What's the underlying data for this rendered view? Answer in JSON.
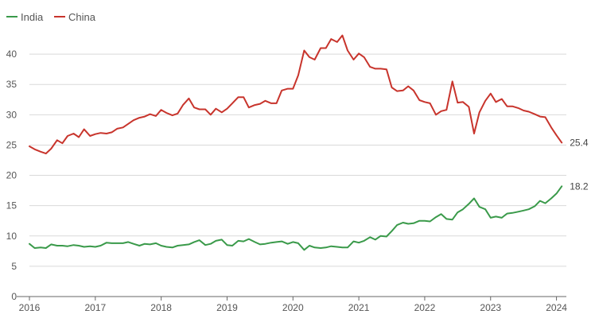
{
  "chart_data": {
    "type": "line",
    "title": "",
    "xlabel": "",
    "ylabel": "",
    "xlim": [
      2016,
      2024.15
    ],
    "ylim": [
      0,
      45
    ],
    "grid": true,
    "legend_position": "top-left",
    "x_ticks": [
      "2016",
      "2017",
      "2018",
      "2019",
      "2020",
      "2021",
      "2022",
      "2023",
      "2024"
    ],
    "y_ticks": [
      "0",
      "5",
      "10",
      "15",
      "20",
      "25",
      "30",
      "35",
      "40"
    ],
    "colors": {
      "India": "#3a9a4a",
      "China": "#c8342c",
      "grid": "#d9d9d9",
      "axis": "#666666"
    },
    "series": [
      {
        "name": "China",
        "end_label": "25.4",
        "x": [
          2016.0,
          2016.08,
          2016.17,
          2016.25,
          2016.33,
          2016.42,
          2016.5,
          2016.58,
          2016.67,
          2016.75,
          2016.83,
          2016.92,
          2017.0,
          2017.08,
          2017.17,
          2017.25,
          2017.33,
          2017.42,
          2017.5,
          2017.58,
          2017.67,
          2017.75,
          2017.83,
          2017.92,
          2018.0,
          2018.08,
          2018.17,
          2018.25,
          2018.33,
          2018.42,
          2018.5,
          2018.58,
          2018.67,
          2018.75,
          2018.83,
          2018.92,
          2019.0,
          2019.08,
          2019.17,
          2019.25,
          2019.33,
          2019.42,
          2019.5,
          2019.58,
          2019.67,
          2019.75,
          2019.83,
          2019.92,
          2020.0,
          2020.08,
          2020.17,
          2020.25,
          2020.33,
          2020.42,
          2020.5,
          2020.58,
          2020.67,
          2020.75,
          2020.83,
          2020.92,
          2021.0,
          2021.08,
          2021.17,
          2021.25,
          2021.33,
          2021.42,
          2021.5,
          2021.58,
          2021.67,
          2021.75,
          2021.83,
          2021.92,
          2022.0,
          2022.08,
          2022.17,
          2022.25,
          2022.33,
          2022.42,
          2022.5,
          2022.58,
          2022.67,
          2022.75,
          2022.83,
          2022.92,
          2023.0,
          2023.08,
          2023.17,
          2023.25,
          2023.33,
          2023.42,
          2023.5,
          2023.58,
          2023.67,
          2023.75,
          2023.83,
          2023.92,
          2024.0,
          2024.08
        ],
        "values": [
          24.8,
          24.3,
          23.9,
          23.6,
          24.4,
          25.8,
          25.3,
          26.5,
          26.9,
          26.3,
          27.6,
          26.5,
          26.8,
          27.0,
          26.9,
          27.1,
          27.7,
          27.9,
          28.5,
          29.1,
          29.5,
          29.7,
          30.1,
          29.8,
          30.8,
          30.3,
          29.9,
          30.2,
          31.6,
          32.7,
          31.2,
          30.9,
          30.9,
          30.0,
          31.0,
          30.4,
          31.0,
          31.9,
          32.9,
          32.9,
          31.2,
          31.6,
          31.8,
          32.3,
          31.9,
          31.9,
          34.0,
          34.3,
          34.3,
          36.5,
          40.6,
          39.5,
          39.1,
          41.0,
          41.0,
          42.5,
          42.0,
          43.1,
          40.6,
          39.1,
          40.1,
          39.5,
          37.9,
          37.6,
          37.6,
          37.5,
          34.5,
          33.9,
          34.0,
          34.7,
          34.0,
          32.4,
          32.1,
          31.9,
          30.0,
          30.6,
          30.8,
          35.5,
          32.0,
          32.1,
          31.3,
          26.9,
          30.4,
          32.3,
          33.5,
          32.1,
          32.6,
          31.4,
          31.4,
          31.1,
          30.7,
          30.5,
          30.1,
          29.7,
          29.6,
          27.9,
          26.6,
          25.4
        ]
      },
      {
        "name": "India",
        "end_label": "18.2",
        "x": [
          2016.0,
          2016.08,
          2016.17,
          2016.25,
          2016.33,
          2016.42,
          2016.5,
          2016.58,
          2016.67,
          2016.75,
          2016.83,
          2016.92,
          2017.0,
          2017.08,
          2017.17,
          2017.25,
          2017.33,
          2017.42,
          2017.5,
          2017.58,
          2017.67,
          2017.75,
          2017.83,
          2017.92,
          2018.0,
          2018.08,
          2018.17,
          2018.25,
          2018.33,
          2018.42,
          2018.5,
          2018.58,
          2018.67,
          2018.75,
          2018.83,
          2018.92,
          2019.0,
          2019.08,
          2019.17,
          2019.25,
          2019.33,
          2019.42,
          2019.5,
          2019.58,
          2019.67,
          2019.75,
          2019.83,
          2019.92,
          2020.0,
          2020.08,
          2020.17,
          2020.25,
          2020.33,
          2020.42,
          2020.5,
          2020.58,
          2020.67,
          2020.75,
          2020.83,
          2020.92,
          2021.0,
          2021.08,
          2021.17,
          2021.25,
          2021.33,
          2021.42,
          2021.5,
          2021.58,
          2021.67,
          2021.75,
          2021.83,
          2021.92,
          2022.0,
          2022.08,
          2022.17,
          2022.25,
          2022.33,
          2022.42,
          2022.5,
          2022.58,
          2022.67,
          2022.75,
          2022.83,
          2022.92,
          2023.0,
          2023.08,
          2023.17,
          2023.25,
          2023.33,
          2023.42,
          2023.5,
          2023.58,
          2023.67,
          2023.75,
          2023.83,
          2023.92,
          2024.0,
          2024.08
        ],
        "values": [
          8.7,
          8.0,
          8.1,
          8.0,
          8.6,
          8.4,
          8.4,
          8.3,
          8.5,
          8.4,
          8.2,
          8.3,
          8.2,
          8.4,
          8.9,
          8.8,
          8.8,
          8.8,
          9.0,
          8.7,
          8.4,
          8.7,
          8.6,
          8.8,
          8.4,
          8.2,
          8.1,
          8.4,
          8.5,
          8.6,
          9.0,
          9.3,
          8.5,
          8.7,
          9.2,
          9.4,
          8.5,
          8.4,
          9.2,
          9.1,
          9.5,
          9.0,
          8.6,
          8.7,
          8.9,
          9.0,
          9.1,
          8.7,
          9.0,
          8.8,
          7.7,
          8.4,
          8.1,
          8.0,
          8.1,
          8.3,
          8.2,
          8.1,
          8.1,
          9.1,
          8.9,
          9.2,
          9.8,
          9.4,
          10.0,
          9.9,
          10.8,
          11.8,
          12.2,
          12.0,
          12.1,
          12.5,
          12.5,
          12.4,
          13.1,
          13.6,
          12.8,
          12.7,
          13.9,
          14.4,
          15.3,
          16.2,
          14.8,
          14.4,
          13.0,
          13.2,
          13.0,
          13.7,
          13.8,
          14.0,
          14.2,
          14.4,
          14.9,
          15.8,
          15.4,
          16.2,
          17.0,
          18.2
        ]
      }
    ]
  }
}
